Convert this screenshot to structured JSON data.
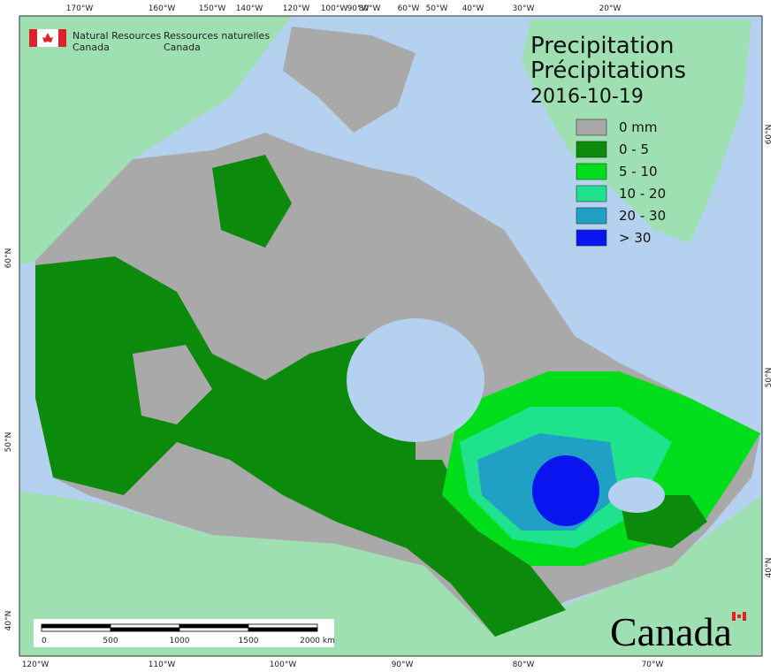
{
  "header": {
    "agency_en": [
      "Natural Resources",
      "Canada"
    ],
    "agency_fr": [
      "Ressources naturelles",
      "Canada"
    ]
  },
  "title": {
    "en": "Precipitation",
    "fr": "Précipitations",
    "date": "2016-10-19"
  },
  "legend": [
    {
      "label": "0 mm",
      "color": "#a9a9a9"
    },
    {
      "label": "0 - 5",
      "color": "#0b8a0b"
    },
    {
      "label": "5 - 10",
      "color": "#00dd1a"
    },
    {
      "label": "10 - 20",
      "color": "#1ee38c"
    },
    {
      "label": "20 - 30",
      "color": "#1fa0c4"
    },
    {
      "label": "> 30",
      "color": "#0a14f0"
    }
  ],
  "scale_bar": {
    "labels": [
      "0",
      "500",
      "1000",
      "1500",
      "2000  km"
    ]
  },
  "graticule": {
    "top": [
      "170°W",
      "160°W",
      "150°W",
      "140°W",
      "120°W",
      "100°W",
      "90°W",
      "80°W",
      "60°W",
      "50°W",
      "40°W",
      "30°W",
      "20°W"
    ],
    "bottom": [
      "120°W",
      "110°W",
      "100°W",
      "90°W",
      "80°W",
      "70°W"
    ],
    "left": [
      "60°N",
      "50°N",
      "40°N"
    ],
    "right": [
      "60°N",
      "50°N",
      "40°N"
    ]
  },
  "wordmark": "Canada"
}
